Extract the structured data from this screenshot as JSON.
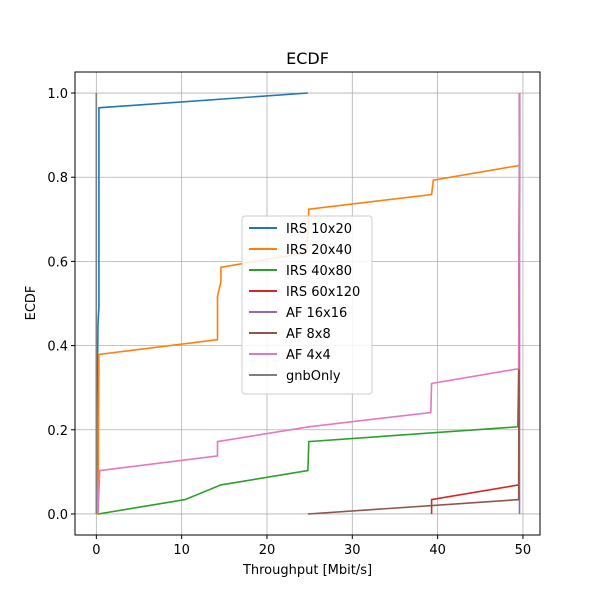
{
  "chart_data": {
    "type": "line",
    "title": "ECDF",
    "xlabel": "Throughput [Mbit/s]",
    "ylabel": "ECDF",
    "xlim": [
      -2.5,
      52.0
    ],
    "ylim": [
      -0.05,
      1.05
    ],
    "xticks": [
      0,
      10,
      20,
      30,
      40,
      50
    ],
    "xtick_labels": [
      "0",
      "10",
      "20",
      "30",
      "40",
      "50"
    ],
    "yticks": [
      0.0,
      0.2,
      0.4,
      0.6,
      0.8,
      1.0
    ],
    "ytick_labels": [
      "0.0",
      "0.2",
      "0.4",
      "0.6",
      "0.8",
      "1.0"
    ],
    "grid": true,
    "legend_position": "center-left",
    "series": [
      {
        "name": "IRS 10x20",
        "color": "#1f77b4",
        "x": [
          0.0,
          0.1,
          0.2,
          0.3,
          0.3,
          0.3,
          24.8
        ],
        "y": [
          0.0,
          0.3,
          0.45,
          0.49,
          0.965,
          0.965,
          1.0
        ]
      },
      {
        "name": "IRS 20x40",
        "color": "#ff7f0e",
        "x": [
          0.0,
          0.2,
          0.3,
          14.2,
          14.2,
          14.6,
          14.6,
          24.7,
          24.9,
          39.3,
          39.5,
          49.6,
          49.6
        ],
        "y": [
          0.0,
          0.0,
          0.379,
          0.414,
          0.517,
          0.552,
          0.586,
          0.621,
          0.724,
          0.759,
          0.793,
          0.828,
          1.0
        ]
      },
      {
        "name": "IRS 40x80",
        "color": "#2ca02c",
        "x": [
          0.2,
          10.4,
          14.6,
          24.8,
          24.9,
          49.4,
          49.5,
          49.6
        ],
        "y": [
          0.0,
          0.034,
          0.069,
          0.103,
          0.172,
          0.207,
          0.345,
          1.0
        ]
      },
      {
        "name": "IRS 60x120",
        "color": "#d62728",
        "x": [
          39.3,
          39.3,
          49.5,
          49.6
        ],
        "y": [
          0.0,
          0.034,
          0.069,
          1.0
        ]
      },
      {
        "name": "AF 16x16",
        "color": "#9467bd",
        "x": [
          49.6,
          49.6
        ],
        "y": [
          0.0,
          1.0
        ]
      },
      {
        "name": "AF 8x8",
        "color": "#8c564b",
        "x": [
          24.8,
          49.5,
          49.6
        ],
        "y": [
          0.0,
          0.034,
          1.0
        ]
      },
      {
        "name": "AF 4x4",
        "color": "#e377c2",
        "x": [
          0.2,
          0.2,
          0.4,
          14.2,
          14.2,
          24.9,
          39.2,
          39.3,
          49.5,
          49.6
        ],
        "y": [
          0.0,
          0.0,
          0.103,
          0.138,
          0.172,
          0.207,
          0.241,
          0.31,
          0.345,
          1.0
        ]
      },
      {
        "name": "gnbOnly",
        "color": "#7f7f7f",
        "x": [
          0.0,
          0.0
        ],
        "y": [
          0.0,
          1.0
        ]
      }
    ]
  }
}
